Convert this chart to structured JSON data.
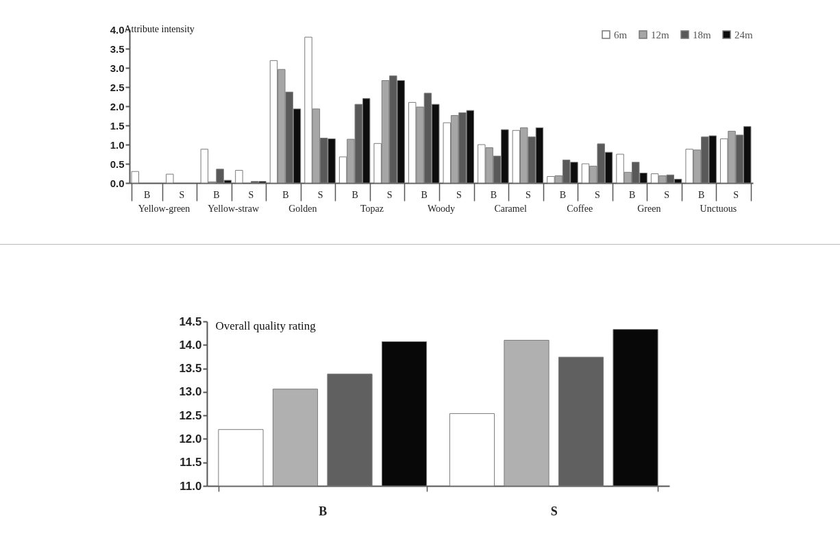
{
  "chart_data": [
    {
      "type": "bar",
      "ylabel": "Attribute intensity",
      "categories": [
        "B",
        "S",
        "B",
        "S",
        "B",
        "S",
        "B",
        "S",
        "B",
        "S",
        "B",
        "S",
        "B",
        "S",
        "B",
        "S",
        "B",
        "S"
      ],
      "annotations": [
        "Yellow-green",
        "Yellow-straw",
        "Golden",
        "Topaz",
        "Woody",
        "Caramel",
        "Coffee",
        "Green",
        "Unctuous"
      ],
      "series": [
        {
          "name": "6m",
          "color": "#ffffff",
          "values": [
            0.3,
            0.23,
            0.88,
            0.33,
            3.19,
            3.8,
            0.68,
            1.03,
            2.1,
            1.57,
            1.0,
            1.37,
            0.17,
            0.5,
            0.75,
            0.24,
            0.88,
            1.15
          ]
        },
        {
          "name": "12m",
          "color": "#a6a6a6",
          "values": [
            0,
            0,
            0.03,
            0,
            2.96,
            1.93,
            1.14,
            2.67,
            1.98,
            1.76,
            0.92,
            1.44,
            0.19,
            0.44,
            0.28,
            0.19,
            0.86,
            1.35
          ]
        },
        {
          "name": "18m",
          "color": "#595959",
          "values": [
            0,
            0,
            0.36,
            0.04,
            2.37,
            1.17,
            2.05,
            2.79,
            2.34,
            1.83,
            0.7,
            1.2,
            0.6,
            1.02,
            0.54,
            0.21,
            1.2,
            1.25
          ]
        },
        {
          "name": "24m",
          "color": "#0d0d0d",
          "values": [
            0,
            0,
            0.07,
            0.04,
            1.93,
            1.15,
            2.2,
            2.67,
            2.05,
            1.89,
            1.39,
            1.44,
            0.54,
            0.8,
            0.26,
            0.1,
            1.23,
            1.47
          ]
        }
      ],
      "ylim": [
        0,
        4
      ],
      "yticks": [
        {
          "value": 0,
          "label": "0.0"
        },
        {
          "value": 0.5,
          "label": "0.5"
        },
        {
          "value": 1,
          "label": "1.0"
        },
        {
          "value": 1.5,
          "label": "1.5"
        },
        {
          "value": 2,
          "label": "2.0"
        },
        {
          "value": 2.5,
          "label": "2.5"
        },
        {
          "value": 3,
          "label": "3.0"
        },
        {
          "value": 3.5,
          "label": "3.5"
        },
        {
          "value": 4,
          "label": "4.0"
        }
      ],
      "legend": "top right"
    },
    {
      "type": "bar",
      "ylabel": "Overall quality rating",
      "categories": [
        "B",
        "S"
      ],
      "series": [
        {
          "color": "#ffffff",
          "values": [
            12.2,
            12.54
          ]
        },
        {
          "color": "#b0b0b0",
          "values": [
            13.06,
            14.1
          ]
        },
        {
          "color": "#606060",
          "values": [
            13.38,
            13.74
          ]
        },
        {
          "color": "#080808",
          "values": [
            14.07,
            14.33
          ]
        }
      ],
      "ylim": [
        11,
        14.5
      ],
      "yticks": [
        {
          "value": 11,
          "label": "11.0"
        },
        {
          "value": 11.5,
          "label": "11.5"
        },
        {
          "value": 12,
          "label": "12.0"
        },
        {
          "value": 12.5,
          "label": "12.5"
        },
        {
          "value": 13,
          "label": "13.0"
        },
        {
          "value": 13.5,
          "label": "13.5"
        },
        {
          "value": 14,
          "label": "14.0"
        },
        {
          "value": 14.5,
          "label": "14.5"
        }
      ]
    }
  ]
}
